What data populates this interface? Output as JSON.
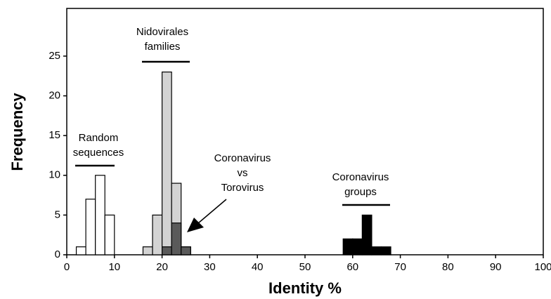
{
  "chart_data": {
    "type": "histogram",
    "xlabel": "Identity %",
    "ylabel": "Frequency",
    "xlim": [
      0,
      100
    ],
    "ylim": [
      0,
      31
    ],
    "xticks": [
      0,
      10,
      20,
      30,
      40,
      50,
      60,
      70,
      80,
      90,
      100
    ],
    "yticks": [
      0,
      5,
      10,
      15,
      20,
      25
    ],
    "series": [
      {
        "label": [
          "Random",
          "sequences"
        ],
        "color": "#ffffff",
        "bins": [
          2,
          4,
          6,
          8,
          10
        ],
        "values": [
          1,
          7,
          10,
          5
        ]
      },
      {
        "label": [
          "Nidovirales",
          "families"
        ],
        "color": "#d3d3d3",
        "bins": [
          16,
          18,
          20,
          22,
          24,
          26
        ],
        "values": [
          1,
          5,
          23,
          9,
          1
        ]
      },
      {
        "label": [
          "Coronavirus",
          "vs",
          "Torovirus"
        ],
        "color": "#5a5a5a",
        "bins": [
          20,
          22,
          24,
          26
        ],
        "values": [
          1,
          4,
          1
        ]
      },
      {
        "label": [
          "Coronavirus",
          "groups"
        ],
        "color": "#000000",
        "bins": [
          58,
          60,
          62,
          64,
          66,
          68
        ],
        "values": [
          2,
          2,
          5,
          1,
          1
        ]
      }
    ]
  }
}
